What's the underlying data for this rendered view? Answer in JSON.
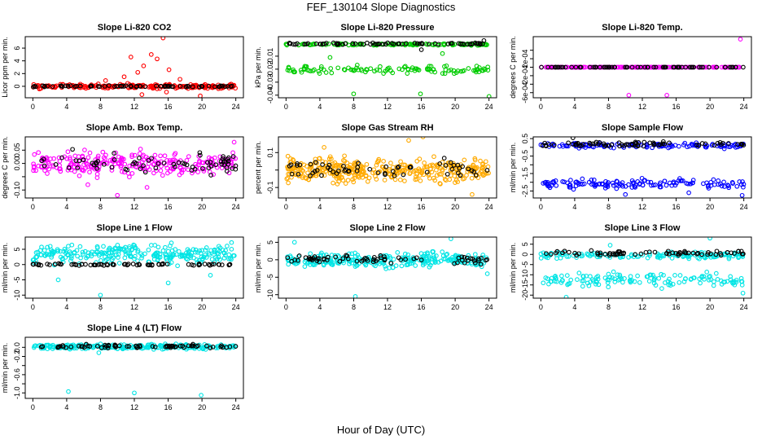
{
  "title": "FEF_130104  Slope Diagnostics",
  "xlabel": "Hour of Day (UTC)",
  "chart_data": [
    {
      "type": "scatter",
      "title": "Slope Li-820 CO2",
      "ylabel": "Licor ppm per min.",
      "xlim": [
        -0.9,
        24.9
      ],
      "ylim": [
        -1.8,
        7.8
      ],
      "xticks": [
        0,
        4,
        8,
        12,
        16,
        20,
        24
      ],
      "xticklabels": [
        "0",
        "4",
        "8",
        "12",
        "16",
        "20",
        "24"
      ],
      "yticks": [
        0,
        2,
        4,
        6
      ],
      "yticklabels": [
        "0",
        "2",
        "4",
        "6"
      ],
      "series": [
        {
          "name": "primary",
          "color": "#ff0000",
          "pattern": {
            "band": [
              [
                -0.5,
                0.5
              ]
            ],
            "density": 210,
            "outliers": [
              [
                10.8,
                1.5
              ],
              [
                11.6,
                4.6
              ],
              [
                12.4,
                2.2
              ],
              [
                13.1,
                3.2
              ],
              [
                14.0,
                5.0
              ],
              [
                14.7,
                4.3
              ],
              [
                15.4,
                7.6
              ],
              [
                16.1,
                2.6
              ],
              [
                12.9,
                -1.3
              ],
              [
                15.8,
                -0.9
              ],
              [
                19.8,
                -1.5
              ],
              [
                8.6,
                0.9
              ],
              [
                17.4,
                1.1
              ]
            ]
          }
        },
        {
          "name": "overlay",
          "color": "#000000",
          "pattern": {
            "band": [
              [
                -0.15,
                0.15
              ]
            ],
            "density": 70
          }
        }
      ]
    },
    {
      "type": "scatter",
      "title": "Slope Li-820 Pressure",
      "ylabel": "kPa per min.",
      "xlim": [
        -0.9,
        24.9
      ],
      "ylim": [
        -0.042,
        0.005
      ],
      "xticks": [
        0,
        4,
        8,
        12,
        16,
        20,
        24
      ],
      "xticklabels": [
        "0",
        "4",
        "8",
        "12",
        "16",
        "20",
        "24"
      ],
      "yticks": [
        -0.04,
        -0.03,
        -0.02,
        -0.01
      ],
      "yticklabels": [
        "-0.04",
        "-0.03",
        "-0.02",
        "-0.01"
      ],
      "series": [
        {
          "name": "primary",
          "color": "#00cc00",
          "pattern": {
            "band": [
              [
                -0.002,
                0.0
              ],
              [
                -0.025,
                -0.016
              ]
            ],
            "density": 230,
            "outliers": [
              [
                8.0,
                -0.039
              ],
              [
                15.9,
                -0.039
              ],
              [
                24.0,
                -0.041
              ],
              [
                5.2,
                -0.011
              ],
              [
                18.5,
                -0.008
              ]
            ]
          }
        },
        {
          "name": "overlay",
          "color": "#000000",
          "pattern": {
            "band": [
              [
                -0.0015,
                0.0005
              ]
            ],
            "density": 70,
            "outliers": [
              [
                23.4,
                0.002
              ],
              [
                16.0,
                -0.005
              ]
            ]
          }
        }
      ]
    },
    {
      "type": "scatter",
      "title": "Slope Li-820 Temp.",
      "ylabel": "degrees C per min.",
      "xlim": [
        -0.9,
        24.9
      ],
      "ylim": [
        -0.00072,
        0.00072
      ],
      "xticks": [
        0,
        4,
        8,
        12,
        16,
        20,
        24
      ],
      "xticklabels": [
        "0",
        "4",
        "8",
        "12",
        "16",
        "20",
        "24"
      ],
      "yticks": [
        -0.0006,
        -0.0004,
        -0.0002,
        0.0,
        0.0002,
        0.0004
      ],
      "yticklabels": [
        "-6e-04",
        "-2e-04",
        "2e-04"
      ],
      "series": [
        {
          "name": "primary",
          "color": "#ff00ff",
          "pattern": {
            "band": [
              [
                0.0,
                0.0
              ]
            ],
            "density": 160,
            "outliers": [
              [
                10.4,
                -0.00066
              ],
              [
                14.9,
                -0.00066
              ],
              [
                23.6,
                0.00066
              ]
            ]
          }
        },
        {
          "name": "overlay",
          "color": "#000000",
          "pattern": {
            "band": [
              [
                0.0,
                0.0
              ]
            ],
            "density": 70
          }
        }
      ]
    },
    {
      "type": "scatter",
      "title": "Slope Amb. Box Temp.",
      "ylabel": "degrees C per min.",
      "xlim": [
        -0.9,
        24.9
      ],
      "ylim": [
        -0.13,
        0.1
      ],
      "xticks": [
        0,
        4,
        8,
        12,
        16,
        20,
        24
      ],
      "xticklabels": [
        "0",
        "4",
        "8",
        "12",
        "16",
        "20",
        "24"
      ],
      "yticks": [
        -0.1,
        -0.05,
        0.0,
        0.05
      ],
      "yticklabels": [
        "-0.10",
        "0.00",
        "0.05"
      ],
      "series": [
        {
          "name": "primary",
          "color": "#ff00ff",
          "pattern": {
            "band": [
              [
                -0.06,
                0.06
              ]
            ],
            "density": 260,
            "outliers": [
              [
                10.0,
                -0.12
              ],
              [
                6.5,
                -0.08
              ],
              [
                13.5,
                -0.09
              ],
              [
                23.8,
                0.08
              ]
            ]
          }
        },
        {
          "name": "overlay",
          "color": "#000000",
          "pattern": {
            "band": [
              [
                -0.06,
                0.07
              ]
            ],
            "density": 70
          }
        }
      ]
    },
    {
      "type": "scatter",
      "title": "Slope Gas Stream RH",
      "ylabel": "percent per min.",
      "xlim": [
        -0.9,
        24.9
      ],
      "ylim": [
        -0.16,
        0.19
      ],
      "xticks": [
        0,
        4,
        8,
        12,
        16,
        20,
        24
      ],
      "xticklabels": [
        "0",
        "4",
        "8",
        "12",
        "16",
        "20",
        "24"
      ],
      "yticks": [
        -0.1,
        0.0,
        0.1
      ],
      "yticklabels": [
        "-0.1",
        "0.1"
      ],
      "series": [
        {
          "name": "primary",
          "color": "#ffaa00",
          "pattern": {
            "band": [
              [
                -0.1,
                0.1
              ]
            ],
            "density": 380,
            "outliers": [
              [
                14.5,
                0.17
              ],
              [
                16.2,
                0.19
              ],
              [
                22.0,
                -0.14
              ],
              [
                4.5,
                0.13
              ]
            ]
          }
        },
        {
          "name": "overlay",
          "color": "#000000",
          "pattern": {
            "band": [
              [
                -0.07,
                0.08
              ]
            ],
            "density": 60
          }
        }
      ]
    },
    {
      "type": "scatter",
      "title": "Slope Sample Flow",
      "ylabel": "ml/min per min.",
      "xlim": [
        -0.9,
        24.9
      ],
      "ylim": [
        -2.9,
        0.6
      ],
      "xticks": [
        0,
        4,
        8,
        12,
        16,
        20,
        24
      ],
      "xticklabels": [
        "0",
        "4",
        "8",
        "12",
        "16",
        "20",
        "24"
      ],
      "yticks": [
        -2.5,
        -2.0,
        -1.5,
        -1.0,
        -0.5,
        0.0,
        0.5
      ],
      "yticklabels": [
        "-2.5",
        "-1.5",
        "-0.5",
        "0.5"
      ],
      "series": [
        {
          "name": "primary",
          "color": "#0000ff",
          "pattern": {
            "band": [
              [
                -0.1,
                0.3
              ],
              [
                -2.5,
                -1.7
              ]
            ],
            "density": 260,
            "outliers": [
              [
                23.8,
                -2.75
              ],
              [
                10.0,
                -2.7
              ],
              [
                13.0,
                -2.0
              ],
              [
                17.5,
                -2.6
              ]
            ]
          }
        },
        {
          "name": "overlay",
          "color": "#000000",
          "pattern": {
            "band": [
              [
                0.0,
                0.35
              ]
            ],
            "density": 70,
            "outliers": [
              [
                3.8,
                0.55
              ]
            ]
          }
        }
      ]
    },
    {
      "type": "scatter",
      "title": "Slope Line 1 Flow",
      "ylabel": "ml/min per min.",
      "xlim": [
        -0.9,
        24.9
      ],
      "ylim": [
        -11.0,
        9.0
      ],
      "xticks": [
        0,
        4,
        8,
        12,
        16,
        20,
        24
      ],
      "xticklabels": [
        "0",
        "4",
        "8",
        "12",
        "16",
        "20",
        "24"
      ],
      "yticks": [
        -10,
        -5,
        0,
        5
      ],
      "yticklabels": [
        "-10",
        "-5",
        "0",
        "5"
      ],
      "series": [
        {
          "name": "primary",
          "color": "#00e5e5",
          "pattern": {
            "band": [
              [
                -1.0,
                8.0
              ]
            ],
            "density": 260,
            "outliers": [
              [
                8.0,
                -10.0
              ],
              [
                3.0,
                -5.0
              ],
              [
                16.0,
                -6.0
              ],
              [
                21.0,
                -3.5
              ]
            ]
          }
        },
        {
          "name": "overlay",
          "color": "#000000",
          "pattern": {
            "band": [
              [
                -0.4,
                0.4
              ]
            ],
            "density": 70
          }
        }
      ]
    },
    {
      "type": "scatter",
      "title": "Slope Line 2 Flow",
      "ylabel": "ml/min per min.",
      "xlim": [
        -0.9,
        24.9
      ],
      "ylim": [
        -11.0,
        6.5
      ],
      "xticks": [
        0,
        4,
        8,
        12,
        16,
        20,
        24
      ],
      "xticklabels": [
        "0",
        "4",
        "8",
        "12",
        "16",
        "20",
        "24"
      ],
      "yticks": [
        -10,
        -5,
        0,
        5
      ],
      "yticklabels": [
        "-10",
        "-5",
        "0",
        "5"
      ],
      "series": [
        {
          "name": "primary",
          "color": "#00e5e5",
          "pattern": {
            "band": [
              [
                -3.0,
                3.0
              ]
            ],
            "density": 280,
            "outliers": [
              [
                8.2,
                -10.5
              ],
              [
                19.5,
                6.0
              ],
              [
                1.0,
                5.0
              ],
              [
                23.8,
                -4.0
              ]
            ]
          }
        },
        {
          "name": "overlay",
          "color": "#000000",
          "pattern": {
            "band": [
              [
                -1.5,
                1.8
              ]
            ],
            "density": 70
          }
        }
      ]
    },
    {
      "type": "scatter",
      "title": "Slope Line 3 Flow",
      "ylabel": "ml/min per min.",
      "xlim": [
        -0.9,
        24.9
      ],
      "ylim": [
        -21.5,
        8.5
      ],
      "xticks": [
        0,
        4,
        8,
        12,
        16,
        20,
        24
      ],
      "xticklabels": [
        "0",
        "4",
        "8",
        "12",
        "16",
        "20",
        "24"
      ],
      "yticks": [
        -20,
        -15,
        -10,
        -5,
        0,
        5
      ],
      "yticklabels": [
        "-20",
        "-15",
        "-10",
        "-5",
        "0",
        "5"
      ],
      "series": [
        {
          "name": "primary",
          "color": "#00e5e5",
          "pattern": {
            "band": [
              [
                -3.0,
                2.0
              ],
              [
                -17.0,
                -8.0
              ]
            ],
            "density": 280,
            "outliers": [
              [
                3.0,
                -21.0
              ],
              [
                23.9,
                -19.0
              ],
              [
                20.0,
                8.0
              ],
              [
                8.2,
                4.5
              ]
            ]
          }
        },
        {
          "name": "overlay",
          "color": "#000000",
          "pattern": {
            "band": [
              [
                -1.0,
                2.5
              ]
            ],
            "density": 70
          }
        }
      ]
    },
    {
      "type": "scatter",
      "title": "Slope Line 4 (LT) Flow",
      "ylabel": "ml/min per min.",
      "xlim": [
        -0.9,
        24.9
      ],
      "ylim": [
        -1.12,
        0.22
      ],
      "xticks": [
        0,
        4,
        8,
        12,
        16,
        20,
        24
      ],
      "xticklabels": [
        "0",
        "4",
        "8",
        "12",
        "16",
        "20",
        "24"
      ],
      "yticks": [
        -1.0,
        -0.8,
        -0.6,
        -0.4,
        -0.2,
        0.0
      ],
      "yticklabels": [
        "-1.0",
        "-0.6",
        "-0.2",
        "0.0"
      ],
      "series": [
        {
          "name": "primary",
          "color": "#00e5e5",
          "pattern": {
            "band": [
              [
                -0.07,
                0.1
              ]
            ],
            "density": 230,
            "outliers": [
              [
                4.2,
                -0.97
              ],
              [
                12.0,
                -1.0
              ],
              [
                19.9,
                -1.05
              ],
              [
                7.8,
                -0.12
              ]
            ]
          }
        },
        {
          "name": "overlay",
          "color": "#000000",
          "pattern": {
            "band": [
              [
                -0.03,
                0.07
              ]
            ],
            "density": 70
          }
        }
      ]
    }
  ]
}
